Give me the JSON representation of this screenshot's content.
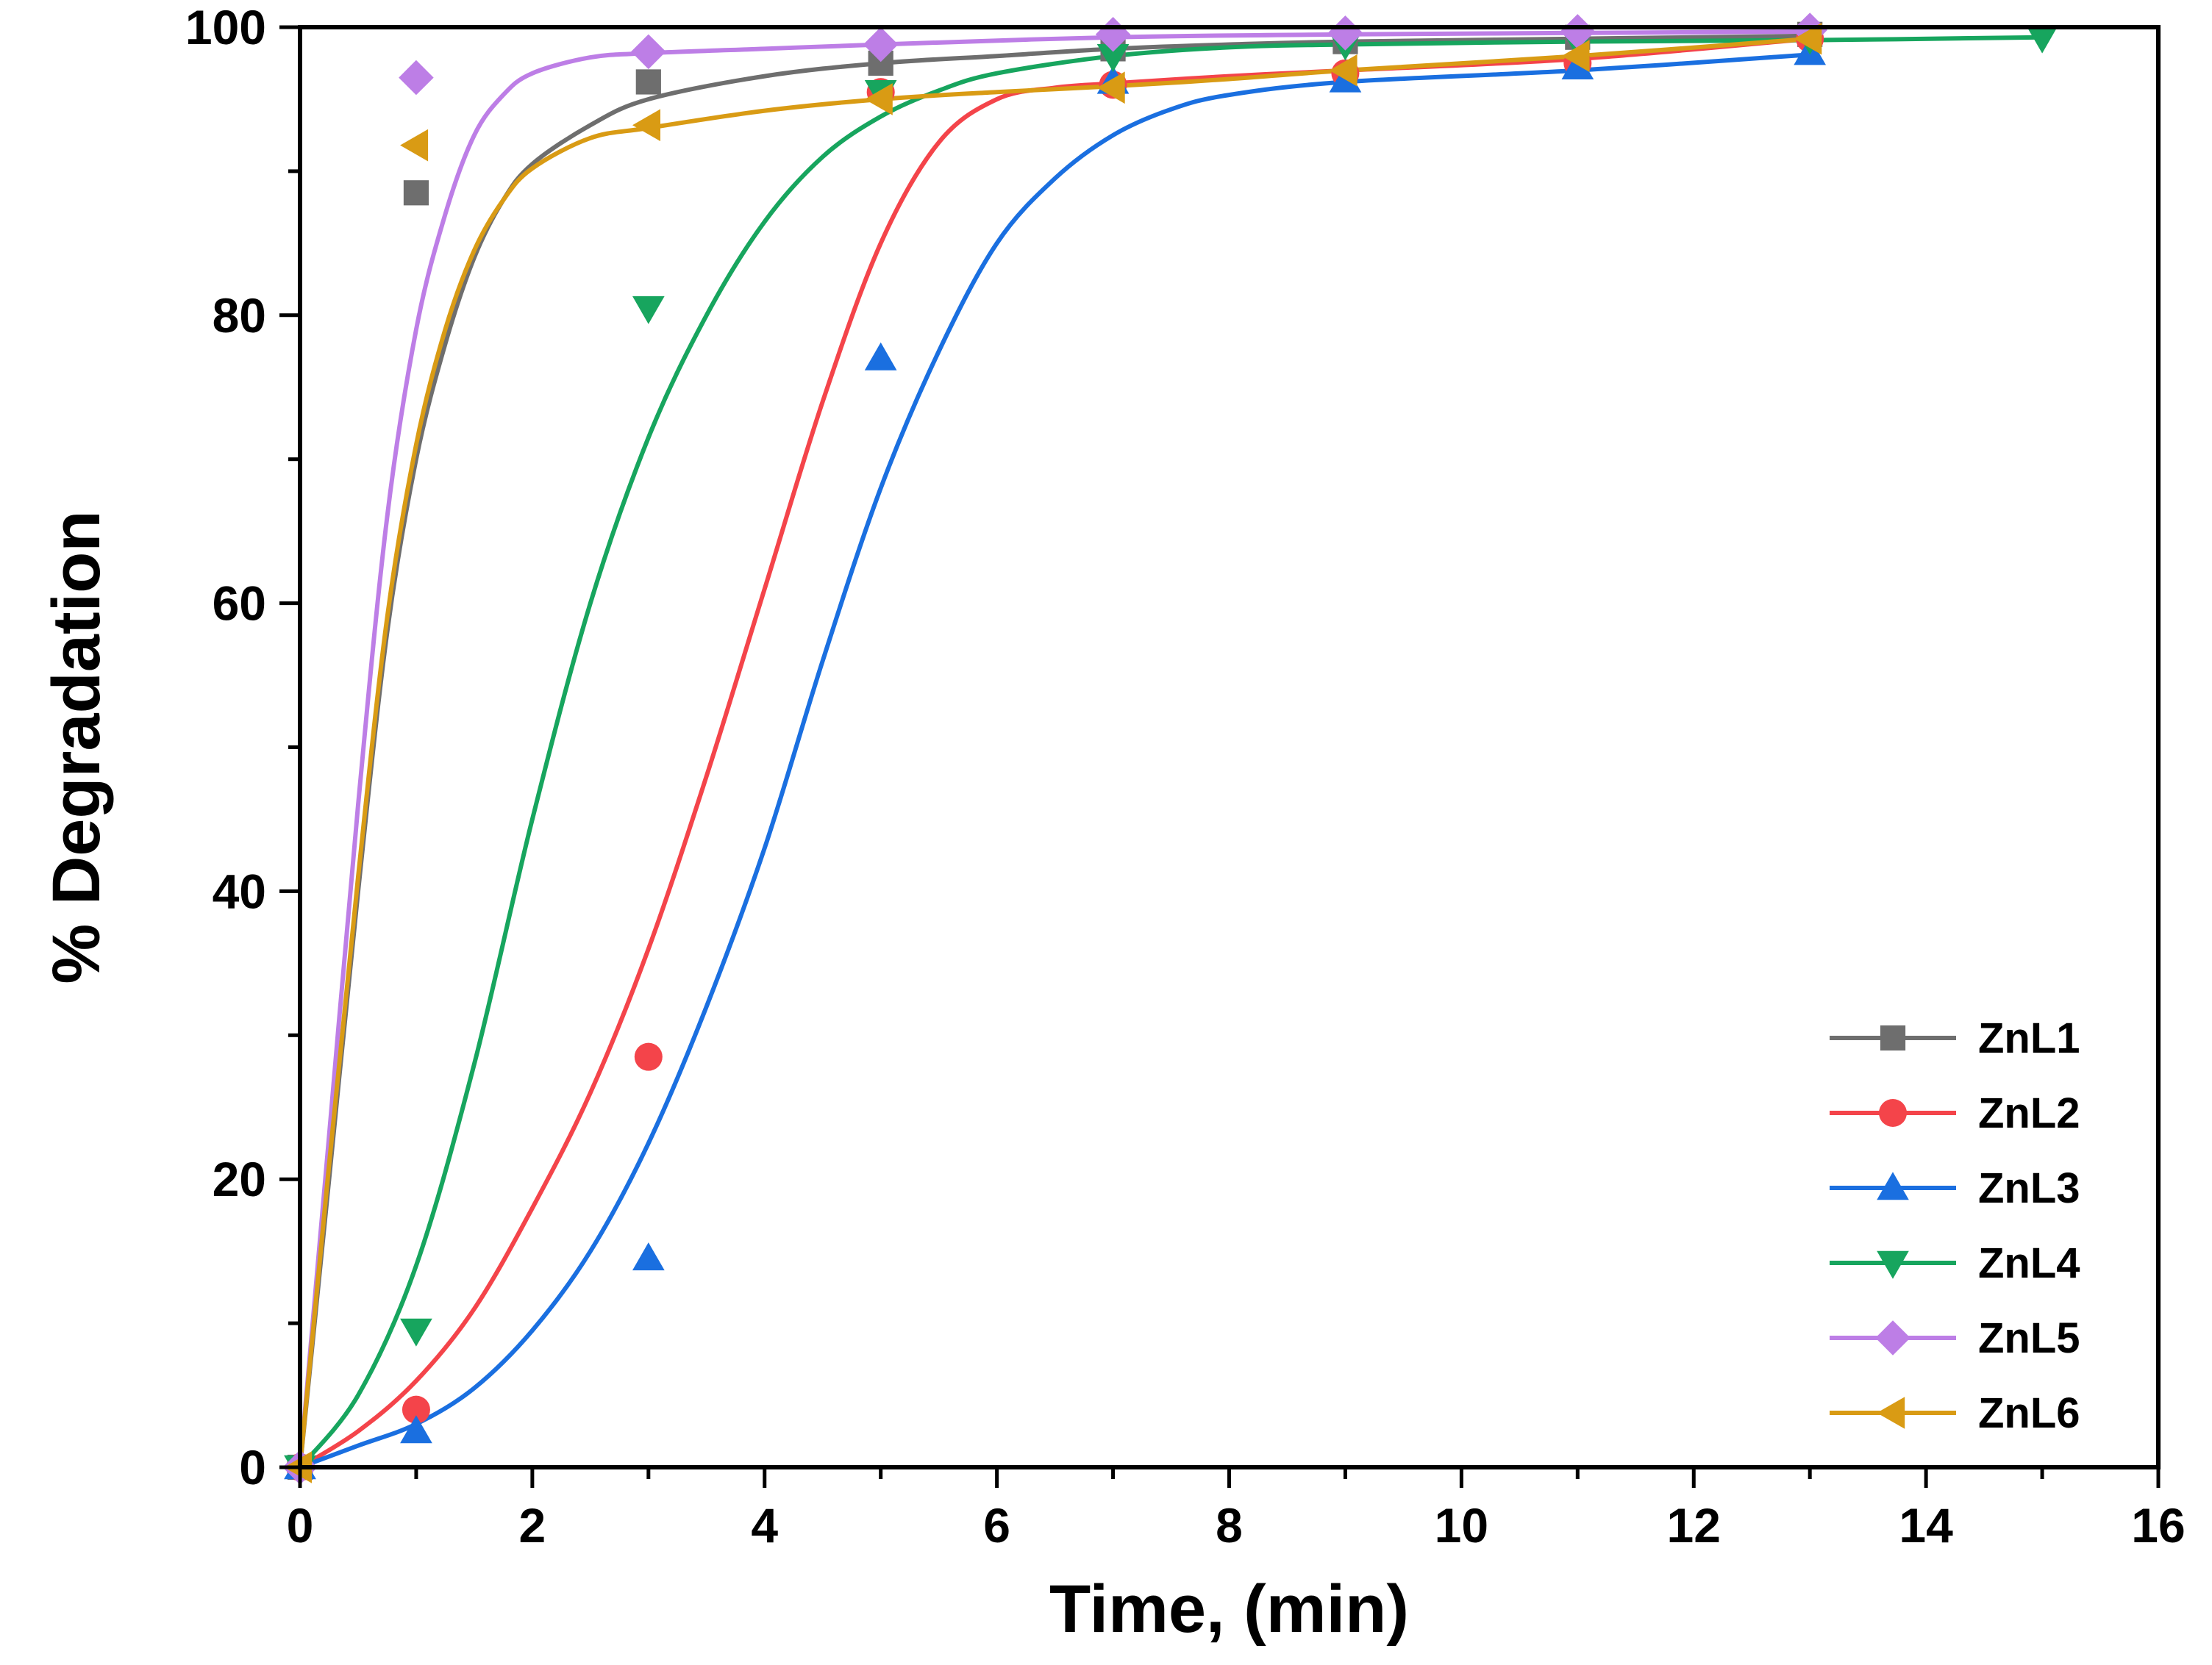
{
  "chart_data": {
    "type": "scatter",
    "title": "",
    "xlabel": "Time, (min)",
    "ylabel": "% Degradation",
    "xlim": [
      0,
      16
    ],
    "ylim": [
      0,
      100
    ],
    "xticks": [
      0,
      2,
      4,
      6,
      8,
      10,
      12,
      14,
      16
    ],
    "yticks": [
      0,
      20,
      40,
      60,
      80,
      100
    ],
    "x_minor_step": 1,
    "y_minor_step": 10,
    "grid": false,
    "legend_position": "bottom-right",
    "series": [
      {
        "name": "ZnL1",
        "color": "#6e6e6e",
        "marker": "square",
        "x": [
          0,
          1,
          3,
          5,
          7,
          9,
          11,
          13
        ],
        "y": [
          0,
          88.5,
          96.2,
          97.5,
          98.5,
          99.0,
          99.3,
          99.5
        ],
        "fit": [
          [
            0,
            0
          ],
          [
            0.25,
            20
          ],
          [
            0.5,
            40
          ],
          [
            0.75,
            58
          ],
          [
            1,
            70
          ],
          [
            1.25,
            78
          ],
          [
            1.5,
            84
          ],
          [
            1.75,
            88
          ],
          [
            2,
            90.5
          ],
          [
            2.5,
            93.2
          ],
          [
            3,
            95
          ],
          [
            4,
            96.6
          ],
          [
            5,
            97.5
          ],
          [
            6,
            98
          ],
          [
            7,
            98.5
          ],
          [
            8,
            98.8
          ],
          [
            9,
            99
          ],
          [
            11,
            99.2
          ],
          [
            13,
            99.4
          ]
        ]
      },
      {
        "name": "ZnL2",
        "color": "#f4444a",
        "marker": "circle",
        "x": [
          0,
          1,
          3,
          5,
          7,
          9,
          11,
          13
        ],
        "y": [
          0,
          4.0,
          28.5,
          95.5,
          96.0,
          96.8,
          97.5,
          99.2
        ],
        "fit": [
          [
            0,
            0
          ],
          [
            0.5,
            2.5
          ],
          [
            1,
            6
          ],
          [
            1.5,
            11
          ],
          [
            2,
            18
          ],
          [
            2.5,
            26
          ],
          [
            3,
            36
          ],
          [
            3.5,
            48
          ],
          [
            4,
            61
          ],
          [
            4.5,
            74
          ],
          [
            5,
            85
          ],
          [
            5.5,
            92
          ],
          [
            6,
            95
          ],
          [
            6.5,
            95.8
          ],
          [
            7,
            96.1
          ],
          [
            8,
            96.6
          ],
          [
            9,
            97
          ],
          [
            11,
            97.8
          ],
          [
            13,
            99.2
          ]
        ]
      },
      {
        "name": "ZnL3",
        "color": "#1a6fe0",
        "marker": "triangle-up",
        "x": [
          0,
          1,
          3,
          5,
          7,
          9,
          11,
          13
        ],
        "y": [
          0,
          2.5,
          14.5,
          77,
          96.2,
          96.3,
          97.2,
          98.2
        ],
        "fit": [
          [
            0,
            0
          ],
          [
            0.5,
            1.5
          ],
          [
            1,
            3
          ],
          [
            1.5,
            5.5
          ],
          [
            2,
            9.5
          ],
          [
            2.5,
            15
          ],
          [
            3,
            22.5
          ],
          [
            3.5,
            32
          ],
          [
            4,
            43
          ],
          [
            4.5,
            56
          ],
          [
            5,
            68
          ],
          [
            5.5,
            77.5
          ],
          [
            6,
            85
          ],
          [
            6.5,
            89.5
          ],
          [
            7,
            92.5
          ],
          [
            7.5,
            94.3
          ],
          [
            8,
            95.3
          ],
          [
            9,
            96.2
          ],
          [
            11,
            97
          ],
          [
            13,
            98.1
          ]
        ]
      },
      {
        "name": "ZnL4",
        "color": "#17a55e",
        "marker": "triangle-down",
        "x": [
          0,
          1,
          3,
          5,
          7,
          9,
          11,
          13,
          15
        ],
        "y": [
          0,
          9.5,
          80.5,
          95.5,
          98.0,
          98.8,
          99.0,
          99.2,
          99.3
        ],
        "fit": [
          [
            0,
            0
          ],
          [
            0.5,
            5
          ],
          [
            1,
            14
          ],
          [
            1.5,
            28
          ],
          [
            2,
            45
          ],
          [
            2.5,
            60
          ],
          [
            3,
            71.5
          ],
          [
            3.5,
            80
          ],
          [
            4,
            86.5
          ],
          [
            4.5,
            91
          ],
          [
            5,
            93.8
          ],
          [
            5.5,
            95.6
          ],
          [
            6,
            96.8
          ],
          [
            7,
            98
          ],
          [
            8,
            98.6
          ],
          [
            9,
            98.8
          ],
          [
            11,
            99
          ],
          [
            13,
            99.1
          ],
          [
            15,
            99.3
          ]
        ]
      },
      {
        "name": "ZnL5",
        "color": "#bd7ee6",
        "marker": "diamond",
        "x": [
          0,
          1,
          3,
          5,
          7,
          9,
          11,
          13
        ],
        "y": [
          0,
          96.5,
          98.3,
          98.8,
          99.5,
          99.6,
          99.7,
          99.8
        ],
        "fit": [
          [
            0,
            0
          ],
          [
            0.25,
            23
          ],
          [
            0.5,
            46
          ],
          [
            0.75,
            66
          ],
          [
            1,
            79
          ],
          [
            1.25,
            87
          ],
          [
            1.5,
            92.5
          ],
          [
            1.75,
            95.3
          ],
          [
            2,
            96.8
          ],
          [
            2.5,
            97.9
          ],
          [
            3,
            98.2
          ],
          [
            4,
            98.5
          ],
          [
            5,
            98.8
          ],
          [
            7,
            99.3
          ],
          [
            9,
            99.5
          ],
          [
            11,
            99.6
          ],
          [
            13,
            99.7
          ]
        ]
      },
      {
        "name": "ZnL6",
        "color": "#d99b14",
        "marker": "triangle-left",
        "x": [
          0,
          1,
          3,
          5,
          7,
          9,
          11,
          13
        ],
        "y": [
          0,
          91.8,
          93.2,
          95.0,
          95.8,
          97.0,
          98.0,
          99.2
        ],
        "fit": [
          [
            0,
            0
          ],
          [
            0.25,
            21
          ],
          [
            0.5,
            41
          ],
          [
            0.75,
            59
          ],
          [
            1,
            71
          ],
          [
            1.25,
            79
          ],
          [
            1.5,
            84.5
          ],
          [
            1.75,
            88
          ],
          [
            2,
            90.2
          ],
          [
            2.5,
            92.3
          ],
          [
            3,
            93
          ],
          [
            4,
            94.2
          ],
          [
            5,
            95
          ],
          [
            6,
            95.5
          ],
          [
            7,
            95.9
          ],
          [
            8,
            96.4
          ],
          [
            9,
            97
          ],
          [
            11,
            98
          ],
          [
            13,
            99.2
          ]
        ]
      }
    ]
  }
}
